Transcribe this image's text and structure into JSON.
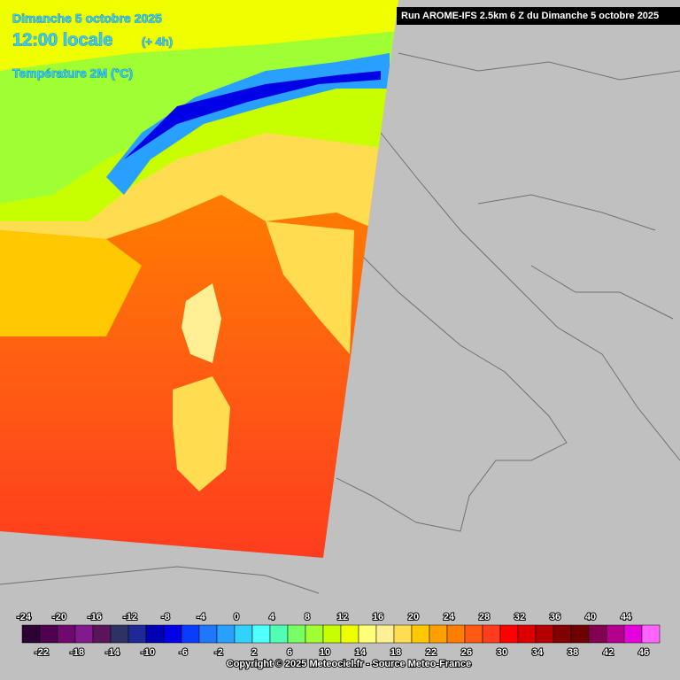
{
  "header": {
    "date": "Dimanche 5 octobre 2025",
    "time": "12:00 locale",
    "offset": "(+ 4h)",
    "variable": "Température 2M (°C)",
    "run": "Run AROME-IFS 2.5km 6 Z du Dimanche 5 octobre 2025"
  },
  "legend": {
    "ticks": [
      -24,
      -22,
      -20,
      -18,
      -16,
      -14,
      -12,
      -10,
      -8,
      -6,
      -4,
      -2,
      0,
      2,
      4,
      6,
      8,
      10,
      12,
      14,
      16,
      18,
      20,
      22,
      24,
      26,
      28,
      30,
      32,
      34,
      36,
      38,
      40,
      42,
      44,
      46
    ],
    "colors": [
      "#2d0032",
      "#500050",
      "#6e0a6e",
      "#82198c",
      "#5a145a",
      "#2d3264",
      "#1e2896",
      "#0000b4",
      "#0000e6",
      "#0a3cff",
      "#1e78ff",
      "#28a0ff",
      "#32d2ff",
      "#50ffff",
      "#50ffb4",
      "#78ff64",
      "#a0ff32",
      "#c8ff00",
      "#f0ff00",
      "#ffff78",
      "#fff096",
      "#ffdc50",
      "#ffc800",
      "#ffa000",
      "#ff7d00",
      "#ff5a14",
      "#ff3c1e",
      "#ff0000",
      "#dc0000",
      "#b40000",
      "#820000",
      "#6e0000",
      "#820050",
      "#b4008c",
      "#e600dc",
      "#ff64ff"
    ]
  },
  "footer": {
    "copyright": "Copyright © 2025 Meteociel.fr - Source Meteo-France"
  }
}
